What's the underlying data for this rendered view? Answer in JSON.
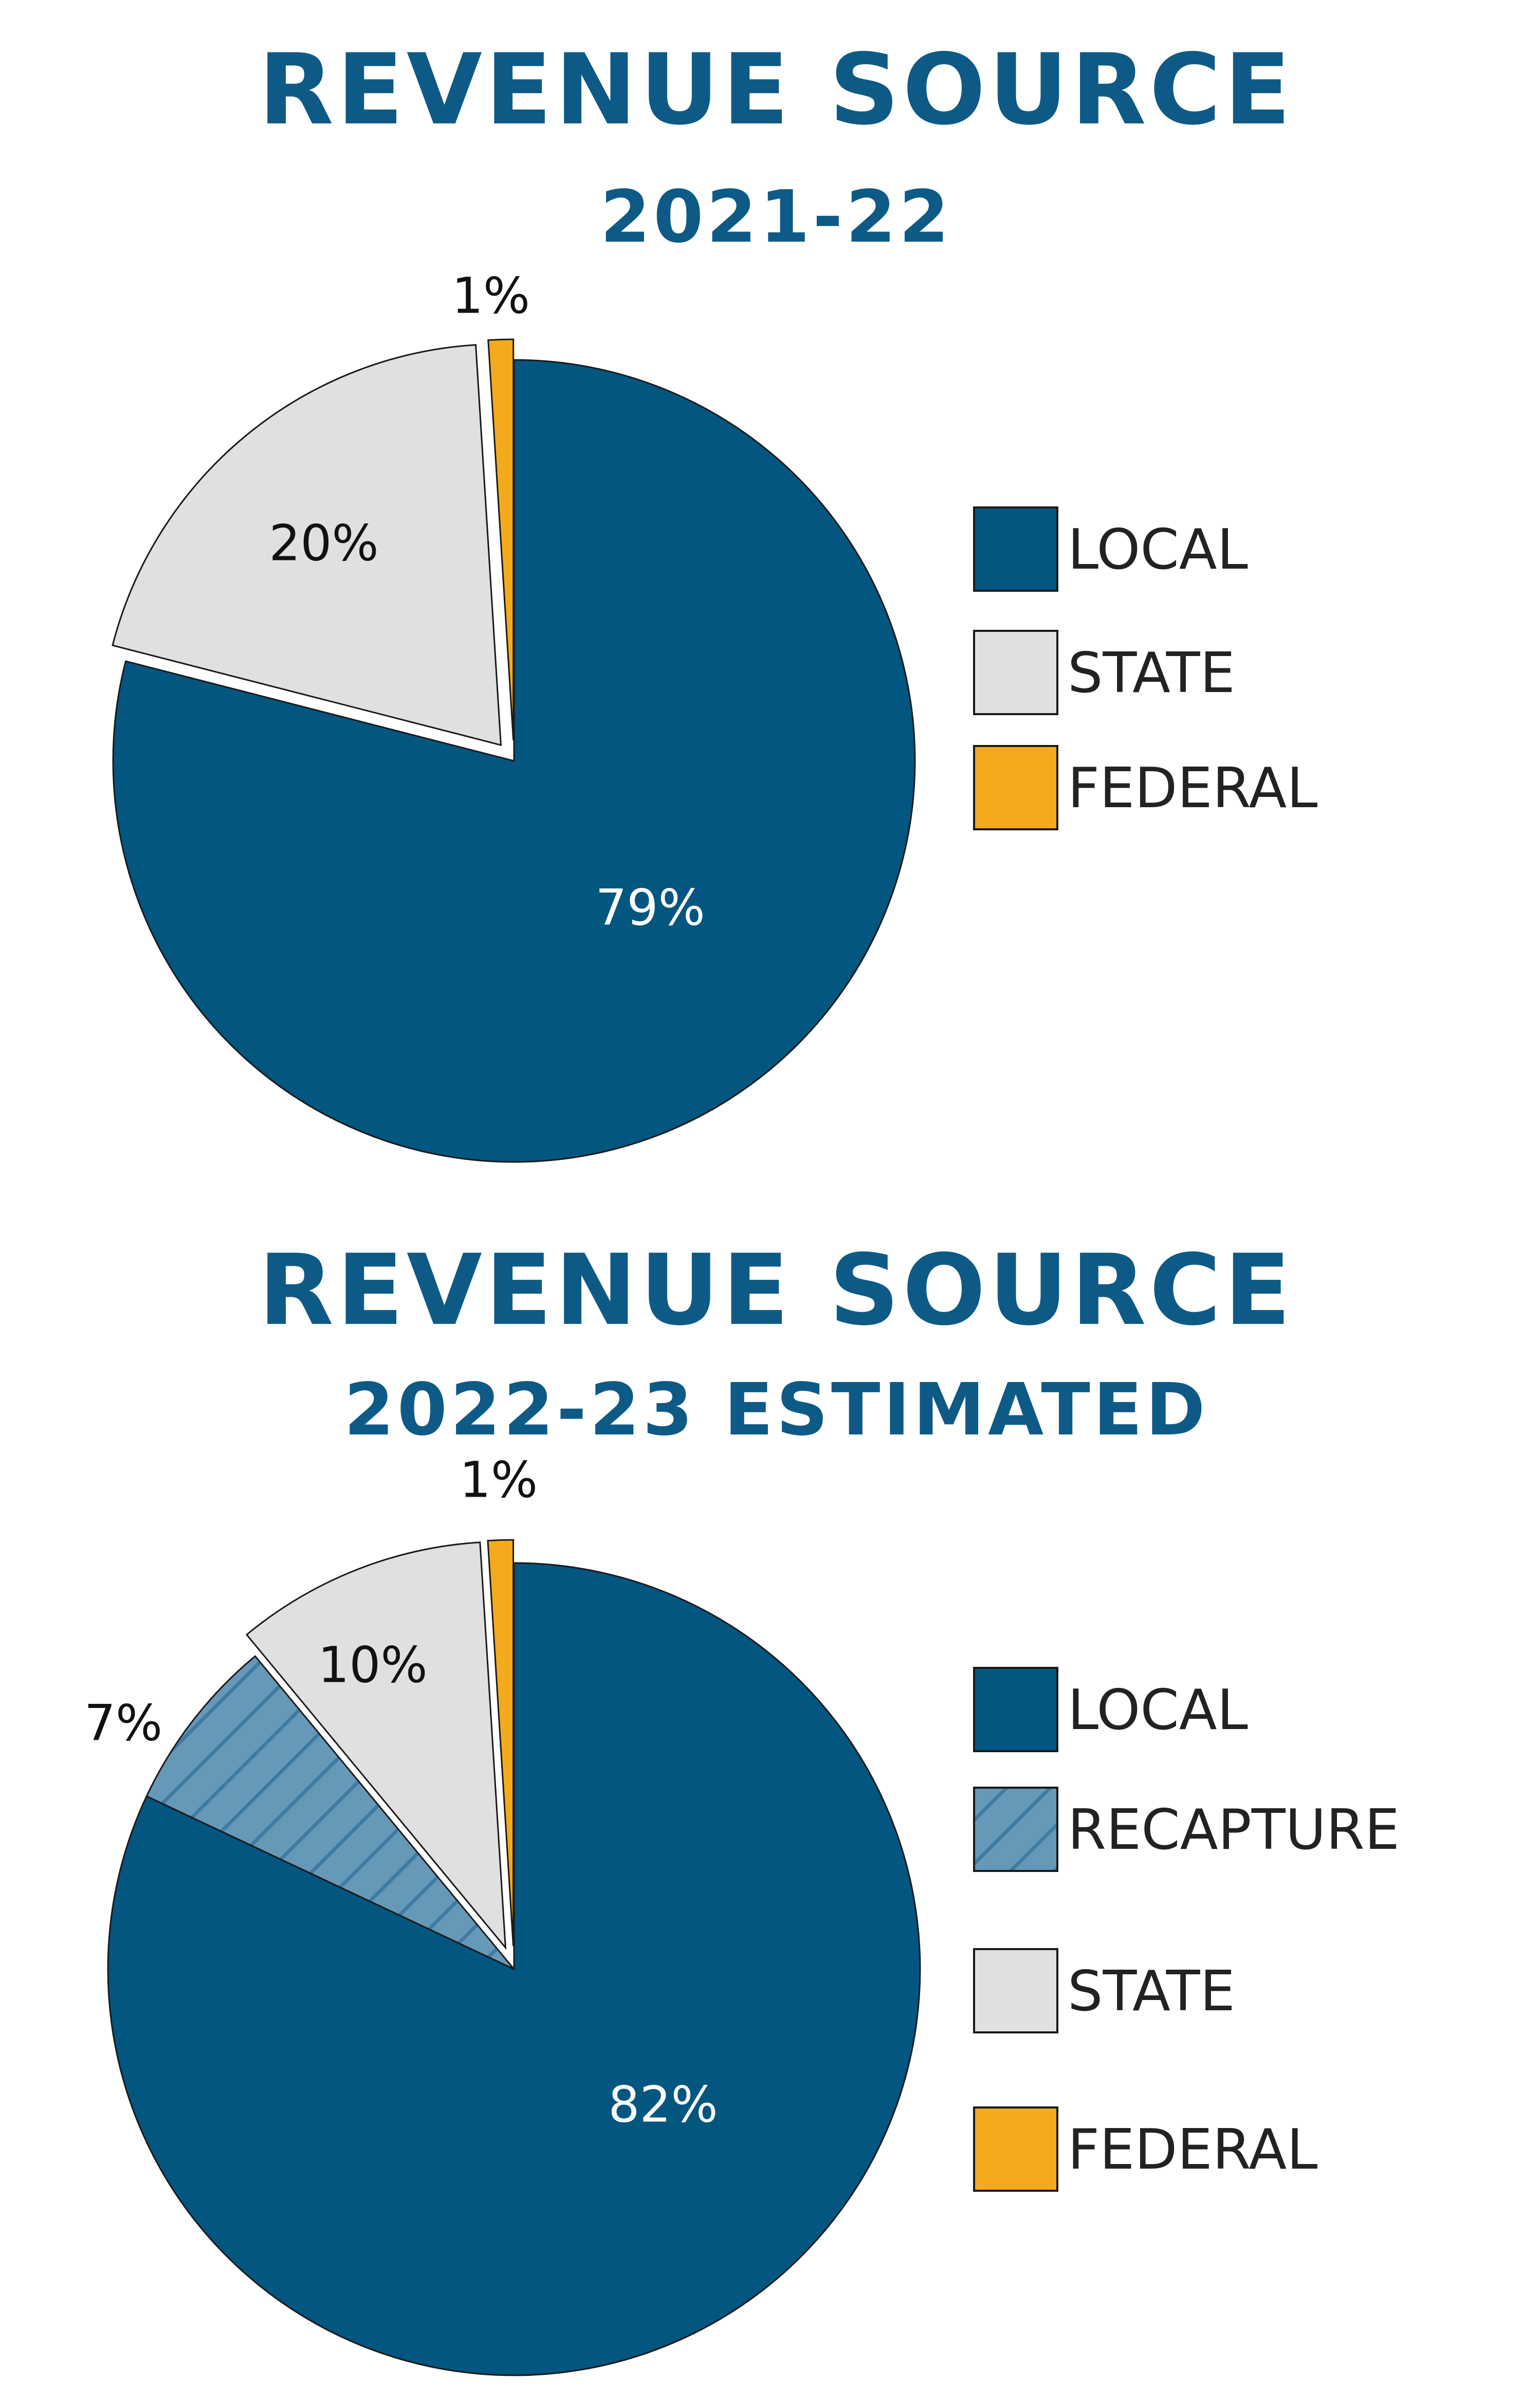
{
  "colors": {
    "title": "#0e5a86",
    "local": "#03567f",
    "recapture": "#6698b8",
    "recapture_hatch": "#3f7ba3",
    "state": "#e0e0e0",
    "federal": "#f3aa1c",
    "outline": "#1a1a1a"
  },
  "chart_data": [
    {
      "type": "pie",
      "title": "REVENUE SOURCE",
      "subtitle": "2021-22",
      "categories": [
        "LOCAL",
        "STATE",
        "FEDERAL"
      ],
      "values": [
        79,
        20,
        1
      ],
      "labels": [
        "79%",
        "20%",
        "1%"
      ],
      "exploded": [
        "STATE",
        "FEDERAL"
      ],
      "legend": "right"
    },
    {
      "type": "pie",
      "title": "REVENUE SOURCE",
      "subtitle": "2022-23 ESTIMATED",
      "categories": [
        "LOCAL",
        "RECAPTURE",
        "STATE",
        "FEDERAL"
      ],
      "values": [
        82,
        7,
        10,
        1
      ],
      "labels": [
        "82%",
        "7%",
        "10%",
        "1%"
      ],
      "exploded": [
        "STATE",
        "FEDERAL"
      ],
      "hatched": [
        "RECAPTURE"
      ],
      "legend": "right"
    }
  ]
}
